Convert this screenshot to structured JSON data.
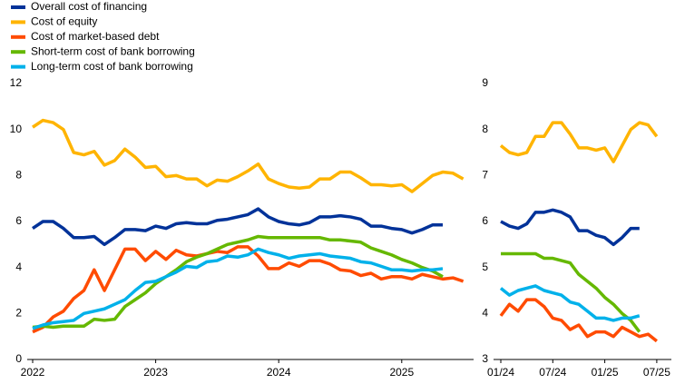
{
  "chart_data": [
    {
      "type": "line",
      "categories": [
        "2022",
        null,
        null,
        null,
        null,
        null,
        null,
        null,
        null,
        null,
        null,
        null,
        "2023",
        null,
        null,
        null,
        null,
        null,
        null,
        null,
        null,
        null,
        null,
        null,
        "2024",
        null,
        null,
        null,
        null,
        null,
        null,
        null,
        null,
        null,
        null,
        null,
        "2025",
        null,
        null,
        null,
        null,
        null,
        null
      ],
      "ylim": [
        0,
        12
      ],
      "yticks": [
        0,
        2,
        4,
        6,
        8,
        10,
        12
      ],
      "legend": "top-left",
      "series": [
        {
          "name": "Overall cost of financing",
          "color": "#003299",
          "values": [
            5.7,
            6.0,
            6.0,
            5.7,
            5.3,
            5.3,
            5.35,
            5.0,
            5.3,
            5.65,
            5.65,
            5.6,
            5.8,
            5.7,
            5.9,
            5.95,
            5.9,
            5.9,
            6.05,
            6.1,
            6.2,
            6.3,
            6.55,
            6.2,
            6.0,
            5.9,
            5.85,
            5.95,
            6.2,
            6.2,
            6.25,
            6.2,
            6.1,
            5.8,
            5.8,
            5.7,
            5.65,
            5.5,
            5.65,
            5.85,
            5.85,
            null,
            null
          ]
        },
        {
          "name": "Cost of equity",
          "color": "#ffb400",
          "values": [
            10.1,
            10.4,
            10.3,
            10.0,
            9.0,
            8.9,
            9.05,
            8.45,
            8.65,
            9.15,
            8.8,
            8.35,
            8.4,
            7.95,
            8.0,
            7.85,
            7.85,
            7.55,
            7.8,
            7.75,
            7.95,
            8.2,
            8.5,
            7.85,
            7.65,
            7.5,
            7.45,
            7.5,
            7.85,
            7.85,
            8.15,
            8.15,
            7.9,
            7.6,
            7.6,
            7.55,
            7.6,
            7.3,
            7.65,
            8.0,
            8.15,
            8.1,
            7.85
          ]
        },
        {
          "name": "Cost of market-based debt",
          "color": "#ff4b00",
          "values": [
            1.2,
            1.4,
            1.85,
            2.1,
            2.65,
            3.0,
            3.9,
            3.0,
            3.9,
            4.8,
            4.8,
            4.3,
            4.7,
            4.35,
            4.75,
            4.55,
            4.5,
            4.6,
            4.7,
            4.65,
            4.9,
            4.9,
            4.5,
            3.95,
            3.95,
            4.2,
            4.05,
            4.3,
            4.3,
            4.15,
            3.9,
            3.85,
            3.65,
            3.75,
            3.5,
            3.6,
            3.6,
            3.5,
            3.7,
            3.6,
            3.5,
            3.55,
            3.4
          ]
        },
        {
          "name": "Short-term cost of bank borrowing",
          "color": "#65b800",
          "values": [
            1.4,
            1.45,
            1.4,
            1.45,
            1.45,
            1.45,
            1.75,
            1.7,
            1.75,
            2.3,
            2.6,
            2.9,
            3.3,
            3.6,
            3.9,
            4.25,
            4.45,
            4.6,
            4.8,
            5.0,
            5.1,
            5.2,
            5.35,
            5.3,
            5.3,
            5.3,
            5.3,
            5.3,
            5.3,
            5.2,
            5.2,
            5.15,
            5.1,
            4.85,
            4.7,
            4.55,
            4.35,
            4.2,
            4.0,
            3.85,
            3.6,
            null,
            null
          ]
        },
        {
          "name": "Long-term cost of bank borrowing",
          "color": "#00b1ea",
          "values": [
            1.35,
            1.5,
            1.6,
            1.65,
            1.7,
            2.0,
            2.1,
            2.2,
            2.4,
            2.6,
            3.0,
            3.35,
            3.4,
            3.6,
            3.8,
            4.05,
            4.0,
            4.25,
            4.3,
            4.5,
            4.45,
            4.55,
            4.8,
            4.65,
            4.55,
            4.4,
            4.5,
            4.55,
            4.6,
            4.5,
            4.45,
            4.4,
            4.25,
            4.2,
            4.05,
            3.9,
            3.9,
            3.85,
            3.9,
            3.9,
            3.95,
            null,
            null
          ]
        }
      ]
    },
    {
      "type": "line",
      "categories": [
        "01/24",
        null,
        null,
        null,
        null,
        null,
        "07/24",
        null,
        null,
        null,
        null,
        null,
        "01/25",
        null,
        null,
        null,
        null,
        null,
        "07/25"
      ],
      "ylim": [
        3,
        9
      ],
      "yticks": [
        3,
        4,
        5,
        6,
        7,
        8,
        9
      ],
      "series": [
        {
          "color": "#003299",
          "values": [
            6.0,
            5.9,
            5.85,
            5.95,
            6.2,
            6.2,
            6.25,
            6.2,
            6.1,
            5.8,
            5.8,
            5.7,
            5.65,
            5.5,
            5.65,
            5.85,
            5.85,
            null,
            null
          ]
        },
        {
          "color": "#ffb400",
          "values": [
            7.65,
            7.5,
            7.45,
            7.5,
            7.85,
            7.85,
            8.15,
            8.15,
            7.9,
            7.6,
            7.6,
            7.55,
            7.6,
            7.3,
            7.65,
            8.0,
            8.15,
            8.1,
            7.85
          ]
        },
        {
          "color": "#ff4b00",
          "values": [
            3.95,
            4.2,
            4.05,
            4.3,
            4.3,
            4.15,
            3.9,
            3.85,
            3.65,
            3.75,
            3.5,
            3.6,
            3.6,
            3.5,
            3.7,
            3.6,
            3.5,
            3.55,
            3.4
          ]
        },
        {
          "color": "#65b800",
          "values": [
            5.3,
            5.3,
            5.3,
            5.3,
            5.3,
            5.2,
            5.2,
            5.15,
            5.1,
            4.85,
            4.7,
            4.55,
            4.35,
            4.2,
            4.0,
            3.85,
            3.6,
            null,
            null
          ]
        },
        {
          "color": "#00b1ea",
          "values": [
            4.55,
            4.4,
            4.5,
            4.55,
            4.6,
            4.5,
            4.45,
            4.4,
            4.25,
            4.2,
            4.05,
            3.9,
            3.9,
            3.85,
            3.9,
            3.9,
            3.95,
            null,
            null
          ]
        }
      ]
    }
  ]
}
